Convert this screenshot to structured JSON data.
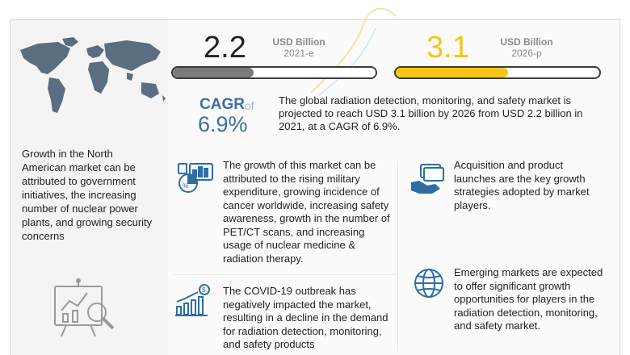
{
  "metrics": [
    {
      "value": "2.2",
      "unit": "USD Billion",
      "year": "2021-e",
      "fill_fraction": 0.4,
      "color": "#7a7a7a"
    },
    {
      "value": "3.1",
      "unit": "USD Billion",
      "year": "2026-p",
      "fill_fraction": 0.55,
      "color": "#f5c518"
    }
  ],
  "cagr": {
    "label": "CAGR",
    "of": "of",
    "value": "6.9%"
  },
  "summary": "The global radiation detection, monitoring, and safety market is projected to reach USD 3.1 billion by 2026 from USD 2.2 billion in 2021, at a CAGR of 6.9%.",
  "left_panel": {
    "text": "Growth in the North American market can be attributed to government initiatives, the increasing number of nuclear power plants, and growing security concerns"
  },
  "blocks": {
    "growth": "The growth of this market can be attributed to the rising military expenditure, growing incidence of cancer worldwide, increasing safety awareness, growth in the number of PET/CT scans, and increasing usage of nuclear medicine & radiation therapy.",
    "covid": "The COVID-19 outbreak has negatively impacted the market, resulting in a decline in the demand for radiation detection, monitoring, and safety products",
    "acquisition": "Acquisition and product launches are the key growth strategies adopted by market players.",
    "emerging": "Emerging markets are expected to offer significant growth opportunities for players in the radiation detection, monitoring, and safety market."
  },
  "icons": {
    "map": "world-map-icon",
    "analytics": "analytics-board-icon",
    "growth": "statistics-icon",
    "covid": "dollar-chart-icon",
    "acquisition": "handshake-money-icon",
    "emerging": "globe-icon"
  },
  "colors": {
    "accent_blue": "#3b6fa8",
    "accent_yellow": "#f5c518",
    "icon_blue": "#2e6da4"
  }
}
